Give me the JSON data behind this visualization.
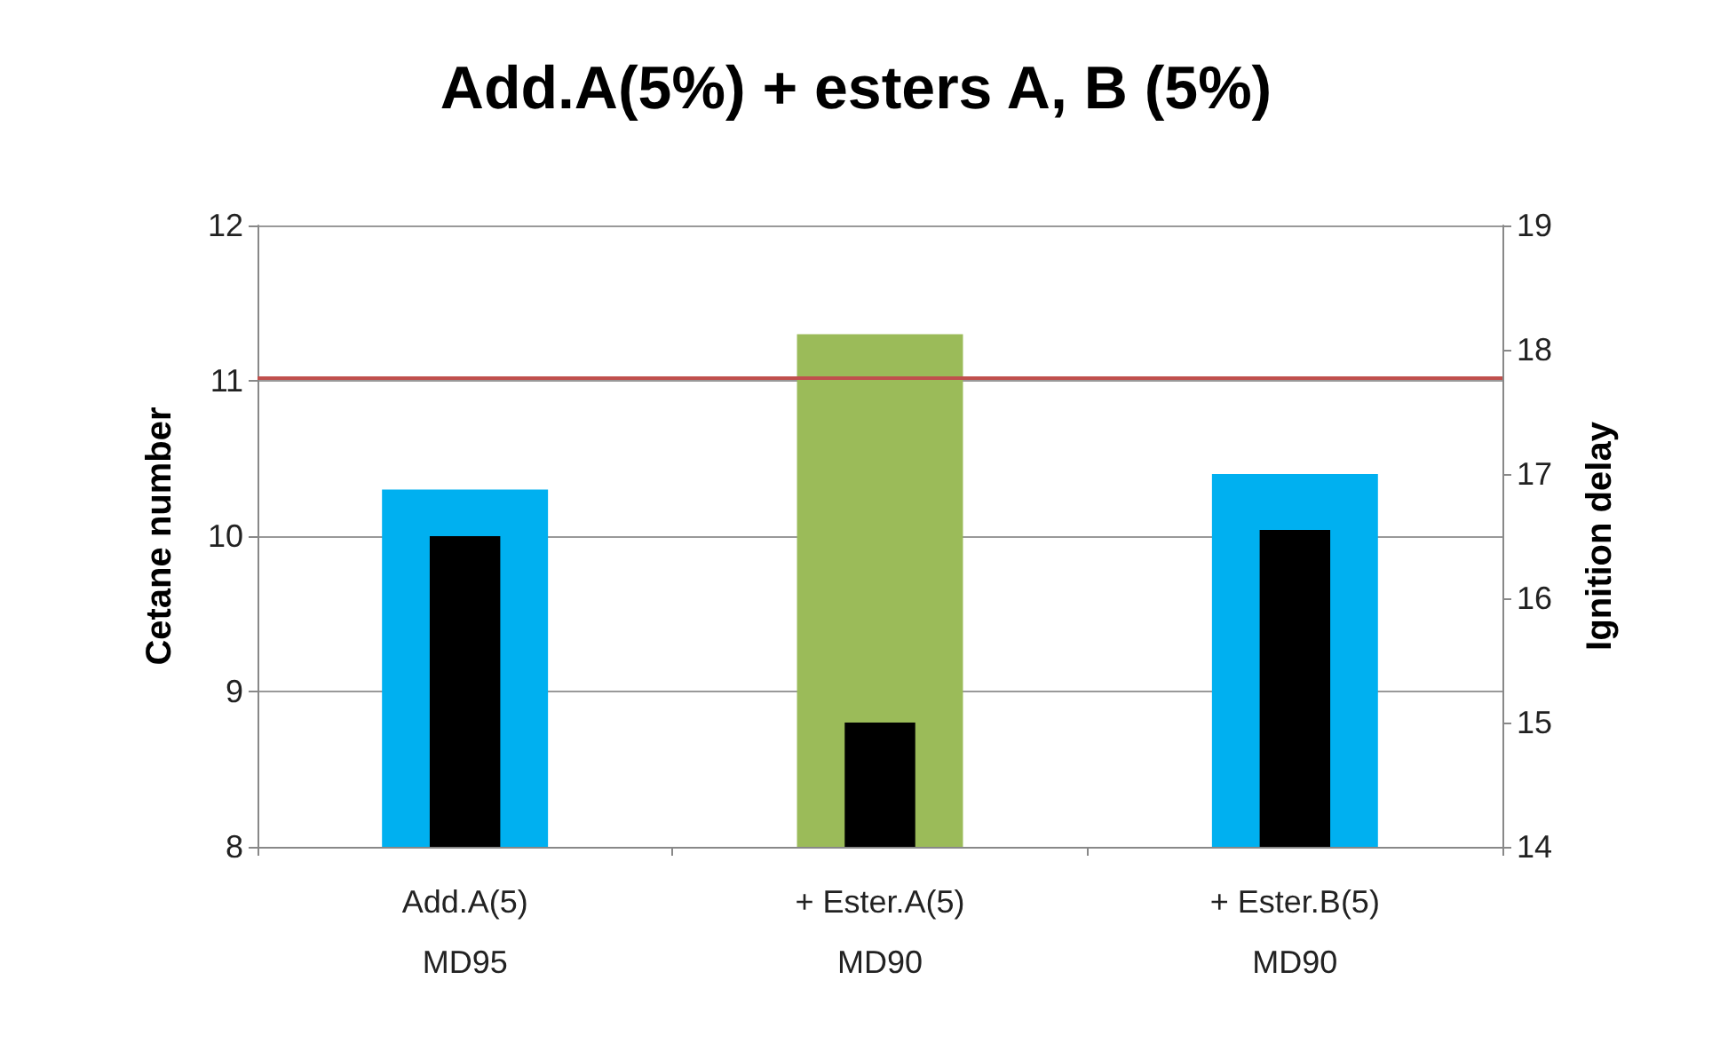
{
  "chart_data": {
    "type": "bar",
    "title": "Add.A(5%) + esters A, B (5%)",
    "ylabel": "Cetane number",
    "y2label": "Ignition delay",
    "categories": [
      "Add.A(5)\nMD95",
      "+ Ester.A(5)\nMD90",
      "+ Ester.B(5)\nMD90"
    ],
    "series": [
      {
        "colors": [
          "#00b0f0",
          "#9bbb59",
          "#00b0f0"
        ],
        "values": [
          10.3,
          11.3,
          10.4
        ]
      },
      {
        "color": "#000000",
        "axis": "y2",
        "values": [
          16.5,
          15.0,
          16.55
        ]
      }
    ],
    "ylim": [
      8,
      12
    ],
    "yticks": [
      8,
      9,
      10,
      11,
      12
    ],
    "y2lim": [
      14,
      19
    ],
    "y2ticks": [
      14,
      15,
      16,
      17,
      18,
      19
    ],
    "ref_lines": [
      {
        "axis": "y",
        "value": 11.02,
        "color": "#c0504d",
        "line_style": "solid"
      }
    ],
    "grid": "y"
  }
}
